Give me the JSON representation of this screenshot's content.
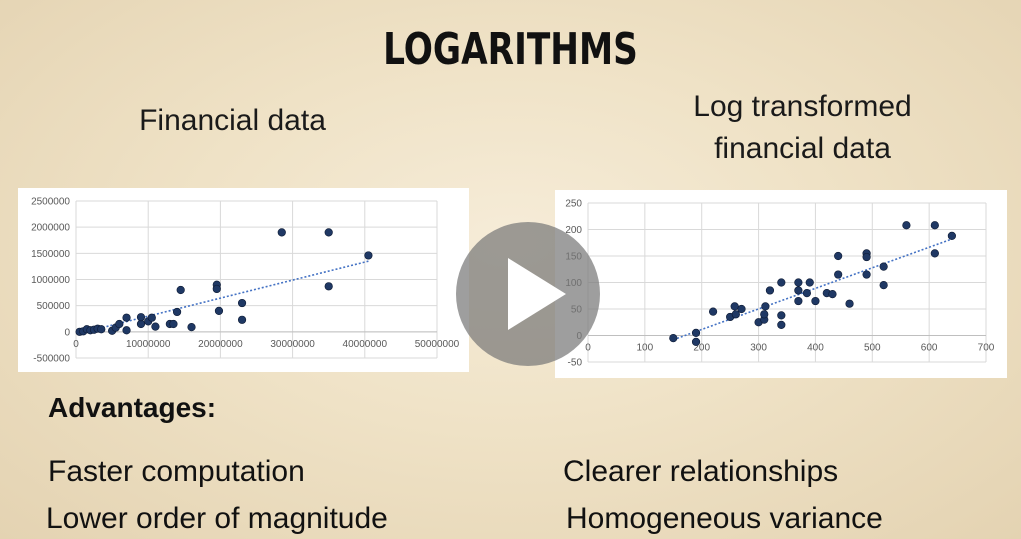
{
  "slide": {
    "title": "LOGARITHMS",
    "left_caption": "Financial data",
    "right_caption_line1": "Log transformed",
    "right_caption_line2": "financial data",
    "advantages_heading": "Advantages:",
    "bullets": [
      "Faster computation",
      "Lower order of magnitude",
      "Clearer relationships",
      "Homogeneous variance"
    ]
  },
  "player": {
    "play_icon": "play-icon",
    "overlay_color": "#787878"
  },
  "chart_data": [
    {
      "type": "scatter",
      "title": "",
      "xlabel": "",
      "ylabel": "",
      "xlim": [
        0,
        50000000
      ],
      "ylim": [
        -500000,
        2500000
      ],
      "x_ticks": [
        "0",
        "10000000",
        "20000000",
        "30000000",
        "40000000",
        "50000000"
      ],
      "y_ticks": [
        "2500000",
        "2000000",
        "1500000",
        "1000000",
        "500000",
        "0",
        "-500000"
      ],
      "grid": true,
      "trendline": "linear",
      "point_color": "#1f3864",
      "points": [
        [
          500000,
          0
        ],
        [
          1000000,
          10000
        ],
        [
          1500000,
          50000
        ],
        [
          2000000,
          30000
        ],
        [
          2500000,
          40000
        ],
        [
          3000000,
          60000
        ],
        [
          3500000,
          50000
        ],
        [
          5000000,
          20000
        ],
        [
          5500000,
          80000
        ],
        [
          6000000,
          150000
        ],
        [
          7000000,
          270000
        ],
        [
          7000000,
          30000
        ],
        [
          9000000,
          150000
        ],
        [
          9000000,
          280000
        ],
        [
          10000000,
          200000
        ],
        [
          10500000,
          270000
        ],
        [
          11000000,
          100000
        ],
        [
          13000000,
          150000
        ],
        [
          13500000,
          150000
        ],
        [
          14000000,
          380000
        ],
        [
          14500000,
          800000
        ],
        [
          16000000,
          90000
        ],
        [
          19500000,
          900000
        ],
        [
          19500000,
          820000
        ],
        [
          19800000,
          400000
        ],
        [
          23000000,
          550000
        ],
        [
          23000000,
          230000
        ],
        [
          28500000,
          1900000
        ],
        [
          35000000,
          1900000
        ],
        [
          35000000,
          870000
        ],
        [
          40500000,
          1460000
        ]
      ],
      "trend": [
        [
          1000000,
          -10000
        ],
        [
          40500000,
          1350000
        ]
      ]
    },
    {
      "type": "scatter",
      "title": "",
      "xlabel": "",
      "ylabel": "",
      "xlim": [
        0,
        700
      ],
      "ylim": [
        -50,
        250
      ],
      "x_ticks": [
        "0",
        "100",
        "200",
        "300",
        "400",
        "500",
        "600",
        "700"
      ],
      "y_ticks": [
        "250",
        "200",
        "150",
        "100",
        "50",
        "0",
        "-50"
      ],
      "grid": true,
      "trendline": "linear",
      "point_color": "#1f3864",
      "points": [
        [
          150,
          -5
        ],
        [
          190,
          5
        ],
        [
          190,
          -12
        ],
        [
          220,
          45
        ],
        [
          250,
          35
        ],
        [
          258,
          55
        ],
        [
          260,
          40
        ],
        [
          270,
          50
        ],
        [
          300,
          25
        ],
        [
          310,
          30
        ],
        [
          310,
          40
        ],
        [
          312,
          55
        ],
        [
          320,
          85
        ],
        [
          340,
          100
        ],
        [
          340,
          20
        ],
        [
          340,
          38
        ],
        [
          370,
          100
        ],
        [
          370,
          65
        ],
        [
          370,
          85
        ],
        [
          385,
          80
        ],
        [
          390,
          100
        ],
        [
          400,
          65
        ],
        [
          420,
          80
        ],
        [
          430,
          78
        ],
        [
          440,
          150
        ],
        [
          440,
          115
        ],
        [
          460,
          60
        ],
        [
          490,
          155
        ],
        [
          490,
          148
        ],
        [
          490,
          115
        ],
        [
          520,
          95
        ],
        [
          520,
          130
        ],
        [
          560,
          208
        ],
        [
          610,
          208
        ],
        [
          610,
          155
        ],
        [
          640,
          188
        ]
      ],
      "trend": [
        [
          150,
          -8
        ],
        [
          640,
          182
        ]
      ]
    }
  ]
}
